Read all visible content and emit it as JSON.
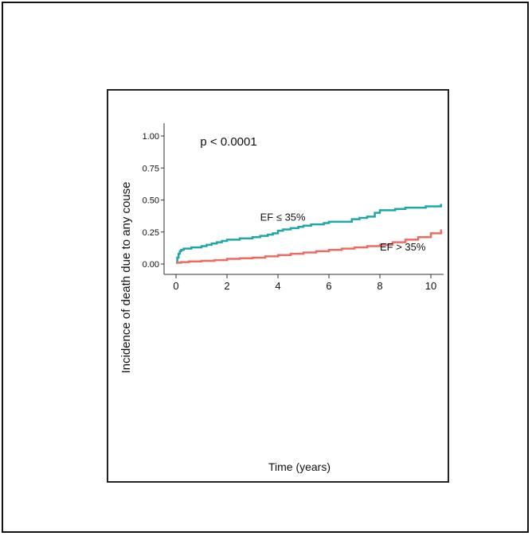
{
  "chart_data": {
    "type": "line",
    "title": "",
    "xlabel": "Time (years)",
    "ylabel": "Incidence of death due to any couse",
    "xlim": [
      0,
      10.5
    ],
    "ylim": [
      0,
      1.05
    ],
    "x_ticks": [
      0,
      2,
      4,
      6,
      8,
      10
    ],
    "x_tick_labels": [
      "0",
      "2",
      "4",
      "6",
      "8",
      "10"
    ],
    "y_ticks": [
      0,
      0.25,
      0.5,
      0.75,
      1.0
    ],
    "y_tick_labels": [
      "0.00",
      "0.25",
      "0.50",
      "0.75",
      "1.00"
    ],
    "grid": false,
    "annotations": [
      {
        "name": "p-value",
        "text": "p < 0.0001",
        "x": 0.95,
        "y": 0.925
      },
      {
        "name": "label-ef-low",
        "text": "EF ≤ 35%",
        "x": 3.3,
        "y": 0.34
      },
      {
        "name": "label-ef-high",
        "text": "EF > 35%",
        "x": 8.0,
        "y": 0.105
      }
    ],
    "series": [
      {
        "name": "EF ≤ 35%",
        "color": "#1fa7a7",
        "step": true,
        "x": [
          0,
          0.05,
          0.1,
          0.15,
          0.2,
          0.3,
          0.4,
          0.6,
          0.8,
          1.0,
          1.2,
          1.4,
          1.6,
          1.8,
          2.0,
          2.2,
          2.5,
          2.8,
          3.0,
          3.3,
          3.6,
          3.8,
          4.0,
          4.2,
          4.5,
          4.8,
          5.0,
          5.3,
          5.6,
          5.8,
          6.0,
          6.3,
          6.6,
          6.9,
          7.2,
          7.5,
          7.8,
          8.0,
          8.3,
          8.6,
          9.0,
          9.4,
          9.8,
          10.2,
          10.4
        ],
        "y": [
          0.01,
          0.05,
          0.08,
          0.1,
          0.11,
          0.12,
          0.12,
          0.13,
          0.13,
          0.14,
          0.15,
          0.16,
          0.17,
          0.18,
          0.19,
          0.19,
          0.2,
          0.2,
          0.21,
          0.22,
          0.23,
          0.24,
          0.26,
          0.27,
          0.28,
          0.29,
          0.3,
          0.31,
          0.31,
          0.32,
          0.33,
          0.33,
          0.33,
          0.35,
          0.36,
          0.37,
          0.4,
          0.42,
          0.42,
          0.43,
          0.44,
          0.44,
          0.45,
          0.45,
          0.47
        ]
      },
      {
        "name": "EF > 35%",
        "color": "#ef6b61",
        "step": true,
        "x": [
          0,
          0.2,
          0.5,
          1.0,
          1.5,
          2.0,
          2.5,
          3.0,
          3.5,
          4.0,
          4.5,
          5.0,
          5.5,
          6.0,
          6.5,
          7.0,
          7.5,
          8.0,
          8.5,
          9.0,
          9.5,
          10.0,
          10.4
        ],
        "y": [
          0.01,
          0.015,
          0.02,
          0.025,
          0.03,
          0.04,
          0.045,
          0.05,
          0.06,
          0.07,
          0.08,
          0.09,
          0.1,
          0.11,
          0.12,
          0.13,
          0.14,
          0.15,
          0.17,
          0.19,
          0.21,
          0.24,
          0.27
        ]
      }
    ]
  }
}
